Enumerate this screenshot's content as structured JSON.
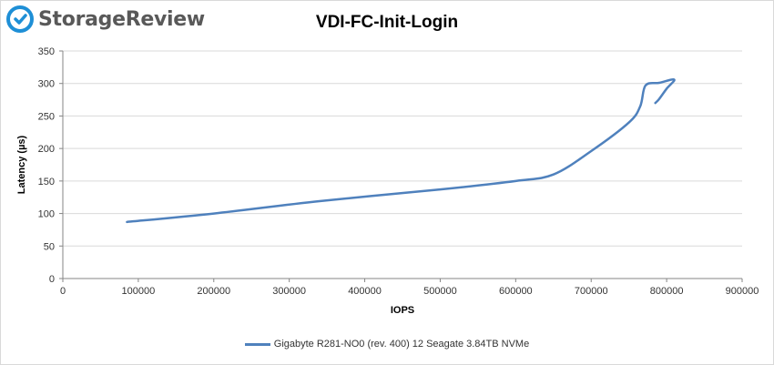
{
  "brand": {
    "name": "StorageReview",
    "icon": "storagereview-logo-icon",
    "icon_color": "#1e8fd6"
  },
  "chart_data": {
    "type": "line",
    "title": "VDI-FC-Init-Login",
    "xlabel": "IOPS",
    "ylabel": "Latency (µs)",
    "xlim": [
      0,
      900000
    ],
    "ylim": [
      0,
      350
    ],
    "xticks": [
      0,
      100000,
      200000,
      300000,
      400000,
      500000,
      600000,
      700000,
      800000,
      900000
    ],
    "yticks": [
      0,
      50,
      100,
      150,
      200,
      250,
      300,
      350
    ],
    "grid": "horizontal",
    "legend_position": "bottom",
    "series": [
      {
        "name": "Gigabyte R281-NO0 (rev. 400) 12 Seagate 3.84TB NVMe",
        "color": "#4f81bd",
        "points": [
          [
            85000,
            87
          ],
          [
            200000,
            100
          ],
          [
            340000,
            119
          ],
          [
            500000,
            137
          ],
          [
            600000,
            150
          ],
          [
            650000,
            160
          ],
          [
            700000,
            196
          ],
          [
            750000,
            240
          ],
          [
            765000,
            265
          ],
          [
            772000,
            297
          ],
          [
            790000,
            301
          ],
          [
            810000,
            306
          ],
          [
            800000,
            292
          ],
          [
            790000,
            276
          ],
          [
            785000,
            270
          ]
        ]
      }
    ]
  }
}
